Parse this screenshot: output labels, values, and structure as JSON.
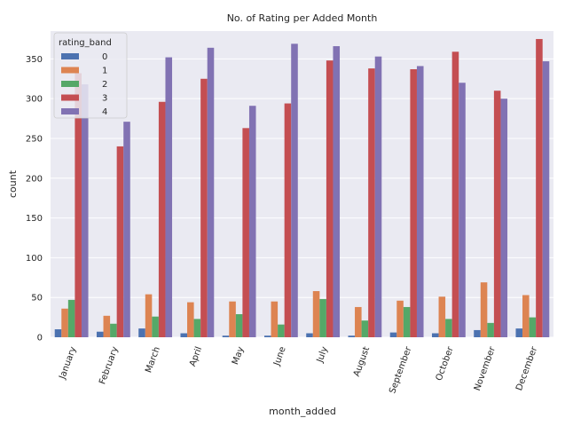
{
  "chart_data": {
    "type": "bar",
    "title": "No. of Rating per Added Month",
    "xlabel": "month_added",
    "ylabel": "count",
    "ylim": [
      0,
      385
    ],
    "yticks": [
      0,
      50,
      100,
      150,
      200,
      250,
      300,
      350
    ],
    "grid": true,
    "legend": {
      "title": "rating_band",
      "placement": "top-left"
    },
    "categories": [
      "January",
      "February",
      "March",
      "April",
      "May",
      "June",
      "July",
      "August",
      "September",
      "October",
      "November",
      "December"
    ],
    "series": [
      {
        "name": "0",
        "color": "#4c72b0",
        "values": [
          10,
          7,
          11,
          5,
          2,
          2,
          5,
          2,
          6,
          5,
          9,
          11
        ]
      },
      {
        "name": "1",
        "color": "#dd8452",
        "values": [
          36,
          27,
          54,
          44,
          45,
          45,
          58,
          38,
          46,
          51,
          69,
          53
        ]
      },
      {
        "name": "2",
        "color": "#55a868",
        "values": [
          47,
          17,
          26,
          23,
          29,
          16,
          48,
          21,
          38,
          23,
          18,
          25
        ]
      },
      {
        "name": "3",
        "color": "#c44e52",
        "values": [
          332,
          240,
          296,
          325,
          263,
          294,
          348,
          338,
          337,
          359,
          310,
          375
        ]
      },
      {
        "name": "4",
        "color": "#8172b3",
        "values": [
          318,
          271,
          352,
          364,
          291,
          369,
          366,
          353,
          341,
          320,
          300,
          347
        ]
      }
    ]
  }
}
